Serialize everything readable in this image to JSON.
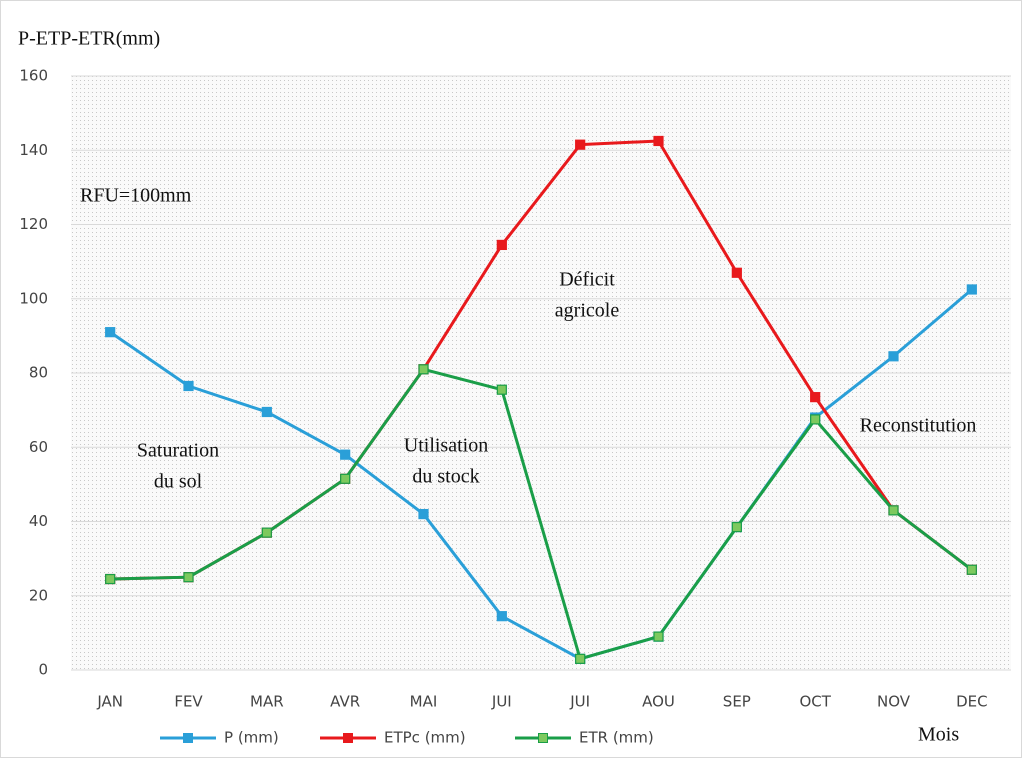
{
  "chart_data": {
    "type": "line",
    "y_label": "P-ETP-ETR(mm)",
    "x_label": "Mois",
    "categories": [
      "JAN",
      "FEV",
      "MAR",
      "AVR",
      "MAI",
      "JUI",
      "JUI",
      "AOU",
      "SEP",
      "OCT",
      "NOV",
      "DEC"
    ],
    "series": [
      {
        "name": "P (mm)",
        "color": "#2a9fd8",
        "values": [
          91,
          76.5,
          69.5,
          58,
          42,
          14.5,
          3,
          9,
          38.5,
          68,
          84.5,
          102.5
        ]
      },
      {
        "name": "ETPc (mm)",
        "color": "#e8191c",
        "values": [
          24.5,
          25,
          37,
          51.5,
          81,
          114.5,
          141.5,
          142.5,
          107,
          73.5,
          43,
          27
        ]
      },
      {
        "name": "ETR (mm)",
        "color": "#1a9e48",
        "values": [
          24.5,
          25,
          37,
          51.5,
          81,
          75.5,
          3,
          9,
          38.5,
          67.5,
          43,
          27
        ]
      }
    ],
    "ylim": [
      0,
      160
    ],
    "yticks": [
      0,
      20,
      40,
      60,
      80,
      100,
      120,
      140,
      160
    ],
    "grid": true,
    "legend": "bottom",
    "annotations": [
      {
        "lines": [
          "RFU=100mm"
        ]
      },
      {
        "lines": [
          "Saturation",
          "du sol"
        ]
      },
      {
        "lines": [
          "Utilisation",
          "du stock"
        ]
      },
      {
        "lines": [
          "Déficit",
          "agricole"
        ]
      },
      {
        "lines": [
          "Reconstitution"
        ]
      }
    ]
  }
}
